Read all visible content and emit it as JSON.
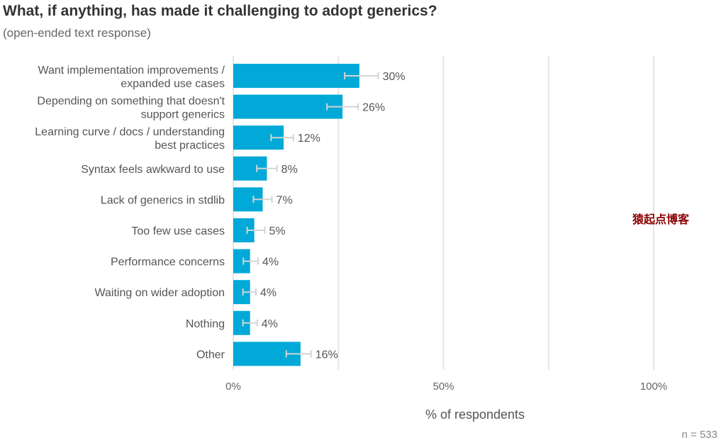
{
  "title": "What, if anything, has made it challenging to adopt generics?",
  "subtitle": "(open-ended text response)",
  "watermark": "猿起点博客",
  "n_label": "n = ",
  "n_value": "533",
  "colors": {
    "bar": "#00a9d8",
    "grid": "#e6e6e6",
    "error": "#d4d4d4"
  },
  "chart_data": {
    "type": "bar",
    "orientation": "horizontal",
    "xlabel": "% of respondents",
    "xlim": [
      0,
      100
    ],
    "xticks": [
      {
        "value": 0,
        "label": "0%"
      },
      {
        "value": 50,
        "label": "50%"
      },
      {
        "value": 100,
        "label": "100%"
      }
    ],
    "gridlines": [
      0,
      25,
      50,
      75,
      100
    ],
    "categories": [
      [
        "Want implementation improvements /",
        "expanded use cases"
      ],
      [
        "Depending on something that doesn't",
        "support generics"
      ],
      [
        "Learning curve / docs / understanding",
        "best practices"
      ],
      [
        "Syntax feels awkward to use"
      ],
      [
        "Lack of generics in stdlib"
      ],
      [
        "Too few use cases"
      ],
      [
        "Performance concerns"
      ],
      [
        "Waiting on wider adoption"
      ],
      [
        "Nothing"
      ],
      [
        "Other"
      ]
    ],
    "values": [
      30,
      26,
      12,
      8,
      7,
      5,
      4,
      4,
      4,
      16
    ],
    "value_labels": [
      "30%",
      "26%",
      "12%",
      "8%",
      "7%",
      "5%",
      "4%",
      "4%",
      "4%",
      "16%"
    ],
    "error_low": [
      26.5,
      22.3,
      9.0,
      5.6,
      4.8,
      3.3,
      2.4,
      2.3,
      2.3,
      12.6
    ],
    "error_high": [
      34.5,
      29.7,
      14.3,
      10.4,
      9.2,
      7.5,
      5.9,
      5.4,
      5.7,
      18.5
    ]
  }
}
